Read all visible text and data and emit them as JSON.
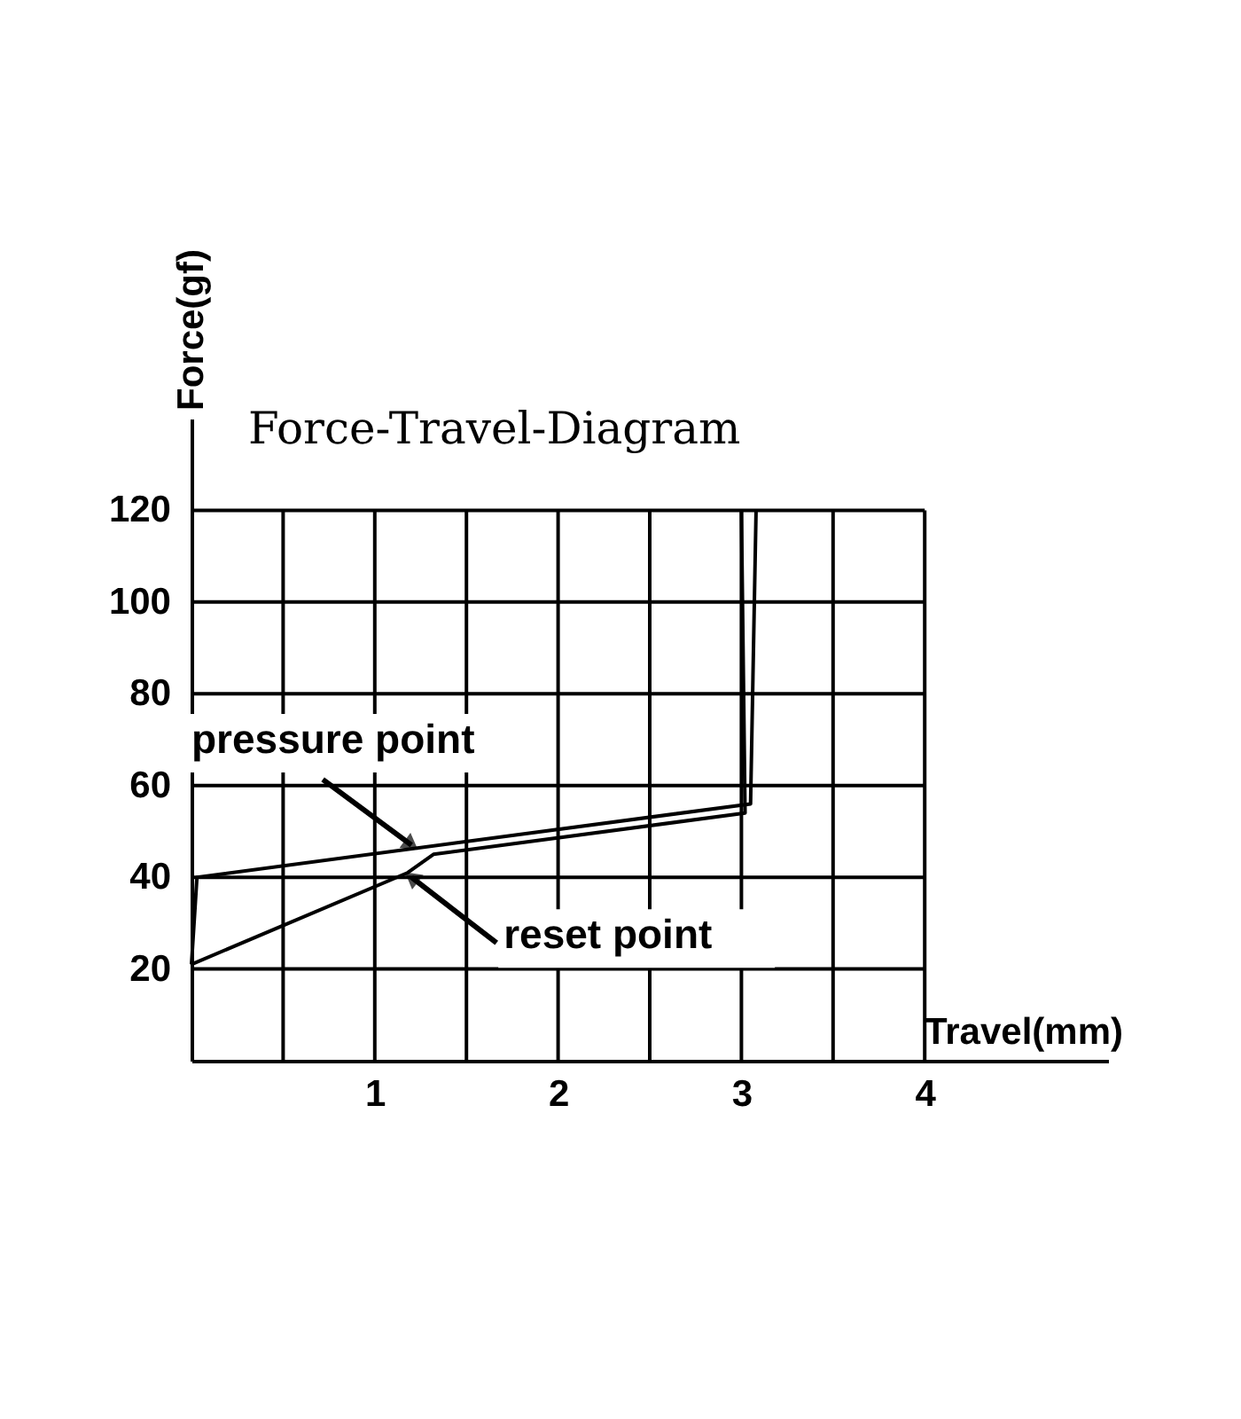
{
  "chart_data": {
    "type": "line",
    "title": "Force-Travel-Diagram",
    "xlabel": "Travel(mm)",
    "ylabel": "Force(gf)",
    "xlim": [
      0,
      5
    ],
    "ylim": [
      0,
      140
    ],
    "xticks": [
      {
        "value": 0.5,
        "label": null
      },
      1,
      {
        "value": 1.5,
        "label": null
      },
      2,
      {
        "value": 2.5,
        "label": null
      },
      3,
      {
        "value": 3.5,
        "label": null
      },
      4
    ],
    "yticks": [
      20,
      40,
      60,
      80,
      100,
      120
    ],
    "grid": true,
    "legend": false,
    "series": [
      {
        "color": "#000000",
        "x": [
          0,
          0.03,
          3.05,
          3.08
        ],
        "values": [
          21,
          40,
          56,
          120
        ]
      },
      {
        "color": "#000000",
        "x": [
          3.0,
          3.02,
          1.32,
          1.18,
          0
        ],
        "values": [
          120,
          54,
          45,
          41,
          21
        ]
      }
    ],
    "annotations": [
      {
        "text": "pressure point",
        "x": 1.2,
        "y": 47
      },
      {
        "text": "reset point",
        "x": 1.2,
        "y": 40
      }
    ]
  }
}
